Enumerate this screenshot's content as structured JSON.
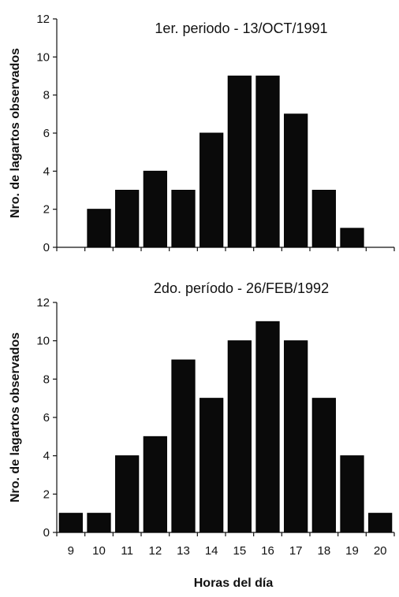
{
  "chart_data": [
    {
      "type": "bar",
      "title": "1er. periodo - 13/OCT/1991",
      "ylabel": "Nro. de lagartos observados",
      "xlabel": "",
      "categories": [
        "9",
        "10",
        "11",
        "12",
        "13",
        "14",
        "15",
        "16",
        "17",
        "18",
        "19",
        "20"
      ],
      "values": [
        null,
        2,
        3,
        4,
        3,
        6,
        9,
        9,
        7,
        3,
        1,
        null
      ],
      "y_ticks": [
        "0",
        "2",
        "4",
        "6",
        "8",
        "10",
        "12"
      ],
      "ylim": [
        0,
        12
      ],
      "show_x_tick_labels": false,
      "grid": false,
      "bar_color": "#0a0a0a"
    },
    {
      "type": "bar",
      "title": "2do. período - 26/FEB/1992",
      "ylabel": "Nro. de lagartos observados",
      "xlabel": "Horas del día",
      "categories": [
        "9",
        "10",
        "11",
        "12",
        "13",
        "14",
        "15",
        "16",
        "17",
        "18",
        "19",
        "20"
      ],
      "values": [
        1,
        1,
        4,
        5,
        9,
        7,
        10,
        11,
        10,
        7,
        4,
        1
      ],
      "y_ticks": [
        "0",
        "2",
        "4",
        "6",
        "8",
        "10",
        "12"
      ],
      "ylim": [
        0,
        12
      ],
      "show_x_tick_labels": true,
      "grid": false,
      "bar_color": "#0a0a0a"
    }
  ]
}
